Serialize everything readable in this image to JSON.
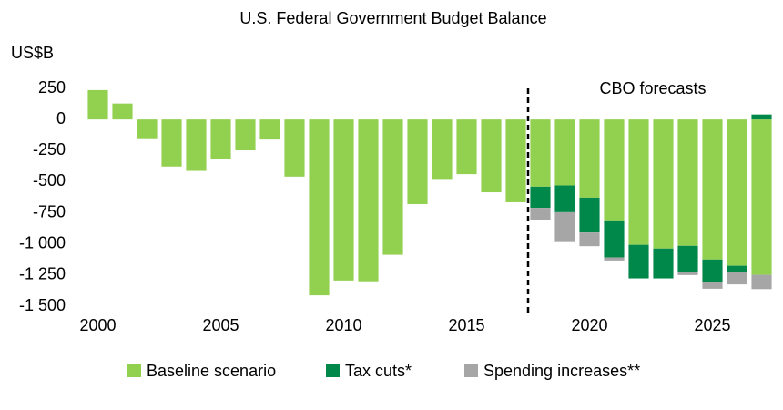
{
  "chart_data": {
    "type": "stacked_bar",
    "title": "U.S. Federal Government Budget Balance",
    "y_axis_label": "US$B",
    "annotation": "CBO forecasts",
    "categories": [
      "2000",
      null,
      null,
      null,
      null,
      "2005",
      null,
      null,
      null,
      null,
      "2010",
      null,
      null,
      null,
      null,
      "2015",
      null,
      null,
      null,
      null,
      "2020",
      null,
      null,
      null,
      null,
      "2025",
      null,
      null
    ],
    "series": [
      {
        "name": "Baseline scenario",
        "color": "#92d050",
        "values": [
          236,
          128,
          -158,
          -378,
          -413,
          -318,
          -248,
          -161,
          -459,
          -1413,
          -1294,
          -1300,
          -1087,
          -680,
          -485,
          -439,
          -585,
          -665,
          -540,
          -530,
          -628,
          -818,
          -1007,
          -1037,
          -1015,
          -1125,
          -1175,
          -1248
        ]
      },
      {
        "name": "Tax cuts*",
        "color": "#00874a",
        "values": [
          null,
          null,
          null,
          null,
          null,
          null,
          null,
          null,
          null,
          null,
          null,
          null,
          null,
          null,
          null,
          null,
          null,
          null,
          -170,
          -215,
          -280,
          -290,
          -270,
          -240,
          -210,
          -180,
          -50,
          40
        ]
      },
      {
        "name": "Spending increases**",
        "color": "#a6a6a6",
        "values": [
          null,
          null,
          null,
          null,
          null,
          null,
          null,
          null,
          null,
          null,
          null,
          null,
          null,
          null,
          null,
          null,
          null,
          null,
          -100,
          -240,
          -110,
          -25,
          0,
          0,
          -25,
          -55,
          -100,
          -115
        ]
      }
    ],
    "ylim": [
      -1500,
      250
    ],
    "yticks": [
      {
        "value": -1500,
        "label": "-1 500"
      },
      {
        "value": -1250,
        "label": "-1 250"
      },
      {
        "value": -1000,
        "label": "-1 000"
      },
      -750,
      -500,
      -250,
      0,
      250
    ],
    "grid": false,
    "legend": "bottom"
  }
}
